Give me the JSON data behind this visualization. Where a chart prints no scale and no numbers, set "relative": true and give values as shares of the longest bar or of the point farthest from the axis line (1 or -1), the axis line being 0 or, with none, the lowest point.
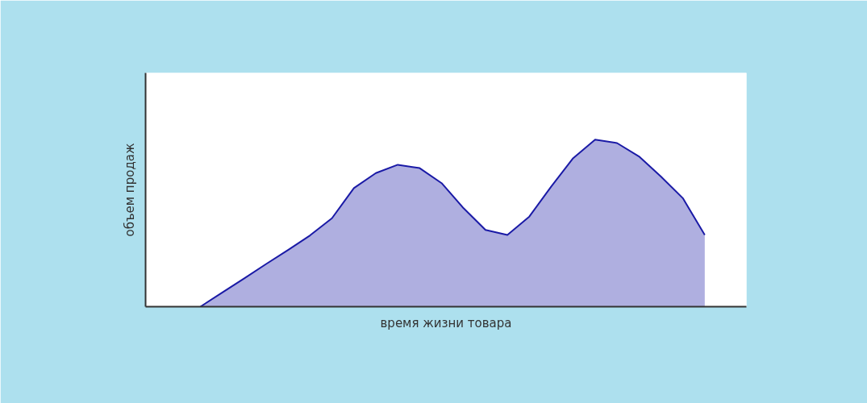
{
  "chart_data": {
    "type": "area",
    "relative": true,
    "xlabel": "время жизни товара",
    "ylabel": "объем продаж",
    "color": "#1a1aa6",
    "grid": false,
    "tick_labels": false,
    "categories": [
      null,
      null,
      null,
      null,
      null,
      null,
      null,
      null,
      null,
      null,
      null,
      null,
      null,
      null,
      null,
      null,
      null,
      null,
      null,
      null,
      null,
      null,
      null,
      null
    ],
    "values": [
      0,
      0.085,
      0.17,
      0.256,
      0.34,
      0.427,
      0.53,
      0.71,
      0.8,
      0.85,
      0.83,
      0.74,
      0.59,
      0.46,
      0.43,
      0.54,
      0.72,
      0.89,
      1,
      0.98,
      0.9,
      0.78,
      0.65,
      0.43
    ]
  }
}
